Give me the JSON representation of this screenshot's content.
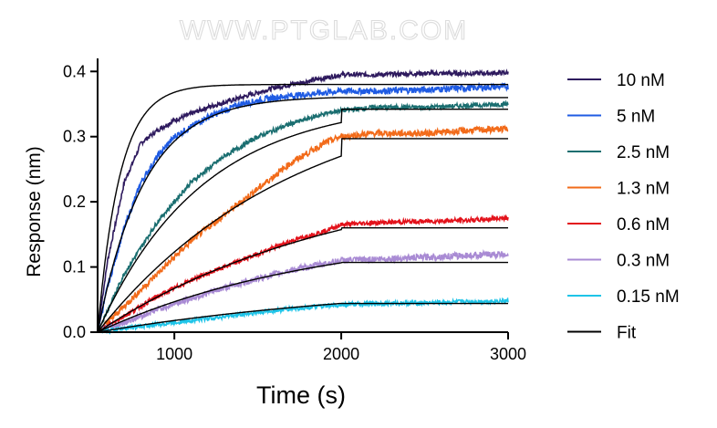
{
  "watermark": "WWW.PTGLAB.COM",
  "chart_data": {
    "type": "line",
    "title": "",
    "xlabel": "Time (s)",
    "ylabel": "Response  (nm)",
    "xlim": [
      540,
      3000
    ],
    "ylim": [
      0,
      0.42
    ],
    "xticks": [
      1000,
      2000,
      3000
    ],
    "xtick_labels": [
      "1000",
      "2000",
      "3000"
    ],
    "yticks": [
      0.0,
      0.1,
      0.2,
      0.3,
      0.4
    ],
    "ytick_labels": [
      "0.0",
      "0.1",
      "0.2",
      "0.3",
      "0.4"
    ],
    "grid": false,
    "legend_position": "right",
    "association_start": 540,
    "dissociation_start": 2000,
    "series": [
      {
        "name": "10 nM",
        "color": "#2e1a5e",
        "x": [
          540,
          600,
          700,
          800,
          900,
          1000,
          1200,
          1400,
          1600,
          1800,
          2000,
          2200,
          2500,
          2800,
          3000
        ],
        "y": [
          0.0,
          0.11,
          0.23,
          0.29,
          0.31,
          0.325,
          0.345,
          0.36,
          0.375,
          0.385,
          0.395,
          0.395,
          0.397,
          0.397,
          0.398
        ]
      },
      {
        "name": "5 nM",
        "color": "#1f5be3",
        "x": [
          540,
          600,
          700,
          800,
          900,
          1000,
          1200,
          1400,
          1600,
          1800,
          2000,
          2200,
          2500,
          2800,
          3000
        ],
        "y": [
          0.0,
          0.07,
          0.16,
          0.23,
          0.27,
          0.3,
          0.33,
          0.35,
          0.36,
          0.365,
          0.37,
          0.37,
          0.372,
          0.375,
          0.377
        ]
      },
      {
        "name": "2.5 nM",
        "color": "#1a6e70",
        "x": [
          540,
          700,
          900,
          1100,
          1300,
          1500,
          1700,
          1900,
          2000,
          2200,
          2500,
          2800,
          3000
        ],
        "y": [
          0.0,
          0.09,
          0.17,
          0.23,
          0.27,
          0.3,
          0.32,
          0.335,
          0.34,
          0.345,
          0.345,
          0.348,
          0.35
        ]
      },
      {
        "name": "1.3 nM",
        "color": "#f26b1a",
        "x": [
          540,
          700,
          900,
          1100,
          1300,
          1500,
          1700,
          1900,
          2000,
          2200,
          2500,
          2800,
          3000
        ],
        "y": [
          0.0,
          0.04,
          0.09,
          0.14,
          0.18,
          0.22,
          0.26,
          0.29,
          0.3,
          0.305,
          0.305,
          0.31,
          0.312
        ]
      },
      {
        "name": "0.6 nM",
        "color": "#e3121b",
        "x": [
          540,
          700,
          900,
          1100,
          1300,
          1500,
          1700,
          1900,
          2000,
          2200,
          2500,
          2800,
          3000
        ],
        "y": [
          0.0,
          0.025,
          0.055,
          0.08,
          0.1,
          0.12,
          0.14,
          0.155,
          0.165,
          0.168,
          0.17,
          0.172,
          0.176
        ]
      },
      {
        "name": "0.3 nM",
        "color": "#a98bd4",
        "x": [
          540,
          700,
          900,
          1100,
          1300,
          1500,
          1700,
          1900,
          2000,
          2200,
          2500,
          2800,
          3000
        ],
        "y": [
          0.0,
          0.015,
          0.035,
          0.052,
          0.068,
          0.082,
          0.095,
          0.105,
          0.11,
          0.112,
          0.115,
          0.118,
          0.12
        ]
      },
      {
        "name": "0.15 nM",
        "color": "#1ec4e8",
        "x": [
          540,
          700,
          900,
          1100,
          1300,
          1500,
          1700,
          1900,
          2000,
          2200,
          2500,
          2800,
          3000
        ],
        "y": [
          0.0,
          0.006,
          0.012,
          0.018,
          0.024,
          0.03,
          0.036,
          0.04,
          0.042,
          0.044,
          0.045,
          0.047,
          0.048
        ]
      }
    ],
    "fit": {
      "name": "Fit",
      "color": "#000000",
      "curves": [
        {
          "plateau": 0.38,
          "k": 0.0075,
          "end": 0.38
        },
        {
          "plateau": 0.362,
          "k": 0.0036,
          "end": 0.36
        },
        {
          "plateau": 0.356,
          "k": 0.0016,
          "end": 0.342
        },
        {
          "plateau": 0.38,
          "k": 0.00085,
          "end": 0.297
        },
        {
          "plateau": 0.25,
          "k": 0.00068,
          "end": 0.16
        },
        {
          "plateau": 0.16,
          "k": 0.00075,
          "end": 0.107
        },
        {
          "plateau": 0.08,
          "k": 0.00055,
          "end": 0.044
        }
      ]
    }
  }
}
